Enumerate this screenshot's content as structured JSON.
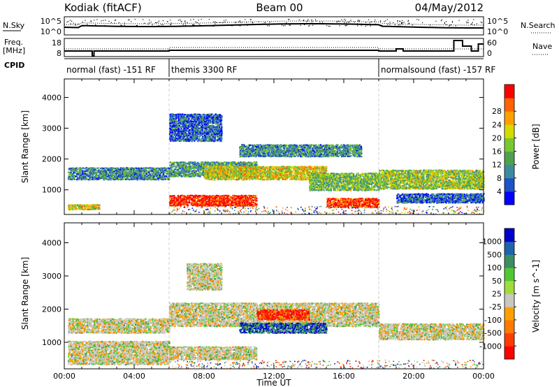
{
  "header": {
    "station": "Kodiak (fitACF)",
    "beam": "Beam 00",
    "date": "04/May/2012"
  },
  "summary_panel": {
    "left_labels": {
      "nsky": "N.Sky",
      "freq": "Freq.",
      "freq_unit": "[MHz]",
      "cpid": "CPID"
    },
    "right_labels": {
      "nsearch": "N.Search",
      "nave": "Nave"
    },
    "n_ticks_left": [
      "10^5",
      "10^0"
    ],
    "n_ticks_right": [
      "10^5",
      "10^0"
    ],
    "freq_ticks": [
      "18",
      "8"
    ],
    "nave_ticks": [
      "60",
      "0"
    ],
    "cpid_segments": [
      {
        "label": "normal (fast) -151 RF",
        "start_hour": 0,
        "end_hour": 6
      },
      {
        "label": "themis 3300 RF",
        "start_hour": 6,
        "end_hour": 18
      },
      {
        "label": "normalsound (fast) -157 RF",
        "start_hour": 18,
        "end_hour": 24
      }
    ]
  },
  "chart_data": [
    {
      "type": "heatmap",
      "title": "",
      "xlabel": "",
      "ylabel": "Slant Range [km]",
      "x_range_hours": [
        0,
        24
      ],
      "ylim": [
        200,
        4600
      ],
      "y_ticks": [
        "1000",
        "2000",
        "3000",
        "4000"
      ],
      "colorbar": {
        "label": "Power [dB]",
        "ticks": [
          "4",
          "8",
          "12",
          "16",
          "20",
          "24",
          "28"
        ],
        "colors": [
          "#0000ff",
          "#1e50c8",
          "#3c8ca0",
          "#50a050",
          "#78c832",
          "#d2dc00",
          "#ffa000",
          "#ff6400",
          "#ff0000"
        ]
      },
      "echo_bands": [
        {
          "start_hour": 0.2,
          "end_hour": 6,
          "range_lo": 1350,
          "range_hi": 1750,
          "level": 0.3
        },
        {
          "start_hour": 0.2,
          "end_hour": 2,
          "range_lo": 380,
          "range_hi": 560,
          "level": 0.6
        },
        {
          "start_hour": 6,
          "end_hour": 11,
          "range_lo": 1450,
          "range_hi": 1950,
          "level": 0.35
        },
        {
          "start_hour": 8,
          "end_hour": 15,
          "range_lo": 1350,
          "range_hi": 1800,
          "level": 0.6
        },
        {
          "start_hour": 6,
          "end_hour": 11,
          "range_lo": 500,
          "range_hi": 850,
          "level": 0.95
        },
        {
          "start_hour": 10,
          "end_hour": 17,
          "range_lo": 2100,
          "range_hi": 2500,
          "level": 0.3
        },
        {
          "start_hour": 6,
          "end_hour": 9,
          "range_lo": 2600,
          "range_hi": 3500,
          "level": 0.2
        },
        {
          "start_hour": 14,
          "end_hour": 18,
          "range_lo": 1000,
          "range_hi": 1600,
          "level": 0.45
        },
        {
          "start_hour": 15,
          "end_hour": 18,
          "range_lo": 450,
          "range_hi": 750,
          "level": 0.9
        },
        {
          "start_hour": 18,
          "end_hour": 24,
          "range_lo": 1050,
          "range_hi": 1700,
          "level": 0.5
        },
        {
          "start_hour": 19,
          "end_hour": 24,
          "range_lo": 600,
          "range_hi": 900,
          "level": 0.2
        }
      ]
    },
    {
      "type": "heatmap",
      "title": "",
      "xlabel": "Time UT",
      "ylabel": "Slant Range [km]",
      "x_range_hours": [
        0,
        24
      ],
      "ylim": [
        200,
        4600
      ],
      "y_ticks": [
        "1000",
        "2000",
        "3000",
        "4000"
      ],
      "x_ticks": [
        "00:00",
        "04:00",
        "08:00",
        "12:00",
        "16:00",
        "20:00",
        "00:00"
      ],
      "colorbar": {
        "label": "Velocity [m s^-1]",
        "ticks": [
          "1000",
          "500",
          "100",
          "50",
          "25",
          "-25",
          "-100",
          "-500",
          "-1000"
        ],
        "colors": [
          "#0000cc",
          "#1e64aa",
          "#3c8c64",
          "#50c832",
          "#a0dc3c",
          "#c8c8c0",
          "#ffa000",
          "#ff7800",
          "#ff3c00",
          "#ff0000"
        ]
      },
      "echo_bands": [
        {
          "start_hour": 0.2,
          "end_hour": 6,
          "range_lo": 1300,
          "range_hi": 1750,
          "level": 0.5
        },
        {
          "start_hour": 0.2,
          "end_hour": 6,
          "range_lo": 350,
          "range_hi": 1050,
          "level": 0.5
        },
        {
          "start_hour": 6,
          "end_hour": 11,
          "range_lo": 500,
          "range_hi": 900,
          "level": 0.5
        },
        {
          "start_hour": 6,
          "end_hour": 18,
          "range_lo": 1500,
          "range_hi": 2200,
          "level": 0.5
        },
        {
          "start_hour": 10,
          "end_hour": 15,
          "range_lo": 1300,
          "range_hi": 1600,
          "level": 0.15
        },
        {
          "start_hour": 11,
          "end_hour": 14,
          "range_lo": 1700,
          "range_hi": 2000,
          "level": 0.9
        },
        {
          "start_hour": 18,
          "end_hour": 24,
          "range_lo": 1100,
          "range_hi": 1600,
          "level": 0.5
        },
        {
          "start_hour": 7,
          "end_hour": 9,
          "range_lo": 2600,
          "range_hi": 3400,
          "level": 0.5
        }
      ]
    }
  ]
}
